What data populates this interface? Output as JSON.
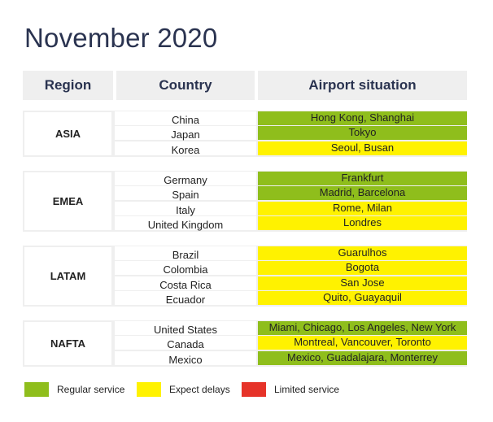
{
  "title": "November 2020",
  "headers": {
    "region": "Region",
    "country": "Country",
    "airport": "Airport situation"
  },
  "colors": {
    "regular": "#8fbe1c",
    "delays": "#fff200",
    "limited": "#e63329"
  },
  "legend": [
    {
      "key": "regular",
      "label": "Regular service"
    },
    {
      "key": "delays",
      "label": "Expect delays"
    },
    {
      "key": "limited",
      "label": "Limited service"
    }
  ],
  "chart_data": {
    "type": "table",
    "title": "November 2020",
    "columns": [
      "Region",
      "Country",
      "Airport situation"
    ],
    "regions": [
      {
        "name": "ASIA",
        "rows": [
          {
            "country": "China",
            "airports": "Hong Kong, Shanghai",
            "status": "regular"
          },
          {
            "country": "Japan",
            "airports": "Tokyo",
            "status": "regular"
          },
          {
            "country": "Korea",
            "airports": "Seoul, Busan",
            "status": "delays"
          }
        ]
      },
      {
        "name": "EMEA",
        "rows": [
          {
            "country": "Germany",
            "airports": "Frankfurt",
            "status": "regular"
          },
          {
            "country": "Spain",
            "airports": "Madrid, Barcelona",
            "status": "regular"
          },
          {
            "country": "Italy",
            "airports": "Rome, Milan",
            "status": "delays"
          },
          {
            "country": "United Kingdom",
            "airports": "Londres",
            "status": "delays"
          }
        ]
      },
      {
        "name": "LATAM",
        "rows": [
          {
            "country": "Brazil",
            "airports": "Guarulhos",
            "status": "delays"
          },
          {
            "country": "Colombia",
            "airports": "Bogota",
            "status": "delays"
          },
          {
            "country": "Costa Rica",
            "airports": "San Jose",
            "status": "delays"
          },
          {
            "country": "Ecuador",
            "airports": "Quito, Guayaquil",
            "status": "delays"
          }
        ]
      },
      {
        "name": "NAFTA",
        "rows": [
          {
            "country": "United States",
            "airports": "Miami, Chicago, Los Angeles, New York",
            "status": "regular"
          },
          {
            "country": "Canada",
            "airports": "Montreal, Vancouver, Toronto",
            "status": "delays"
          },
          {
            "country": "Mexico",
            "airports": "Mexico, Guadalajara, Monterrey",
            "status": "regular"
          }
        ]
      }
    ]
  }
}
